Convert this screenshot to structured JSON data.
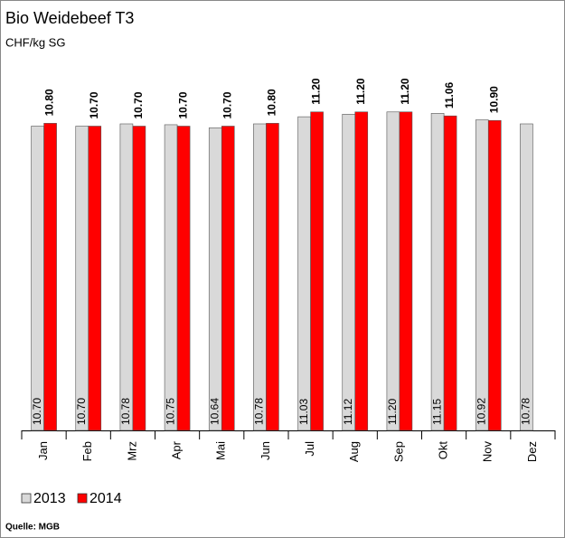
{
  "chart_data": {
    "type": "bar",
    "title": "Bio Weidebeef T3",
    "subtitle": "CHF/kg SG",
    "source": "Quelle: MGB",
    "categories": [
      "Jan",
      "Feb",
      "Mrz",
      "Apr",
      "Mai",
      "Jun",
      "Jul",
      "Aug",
      "Sep",
      "Okt",
      "Nov",
      "Dez"
    ],
    "series": [
      {
        "name": "2013",
        "color": "#d9d9d9",
        "values": [
          10.7,
          10.7,
          10.78,
          10.75,
          10.64,
          10.78,
          11.03,
          11.12,
          11.2,
          11.15,
          10.92,
          10.78
        ],
        "value_labels": [
          "10.70",
          "10.70",
          "10.78",
          "10.75",
          "10.64",
          "10.78",
          "11.03",
          "11.12",
          "11.20",
          "11.15",
          "10.92",
          "10.78"
        ]
      },
      {
        "name": "2014",
        "color": "#ff0000",
        "values": [
          10.8,
          10.7,
          10.7,
          10.7,
          10.7,
          10.8,
          11.2,
          11.2,
          11.2,
          11.06,
          10.9,
          null
        ],
        "value_labels": [
          "10.80",
          "10.70",
          "10.70",
          "10.70",
          "10.70",
          "10.80",
          "11.20",
          "11.20",
          "11.20",
          "11.06",
          "10.90",
          null
        ]
      }
    ],
    "ylim": [
      0,
      14.5
    ]
  }
}
